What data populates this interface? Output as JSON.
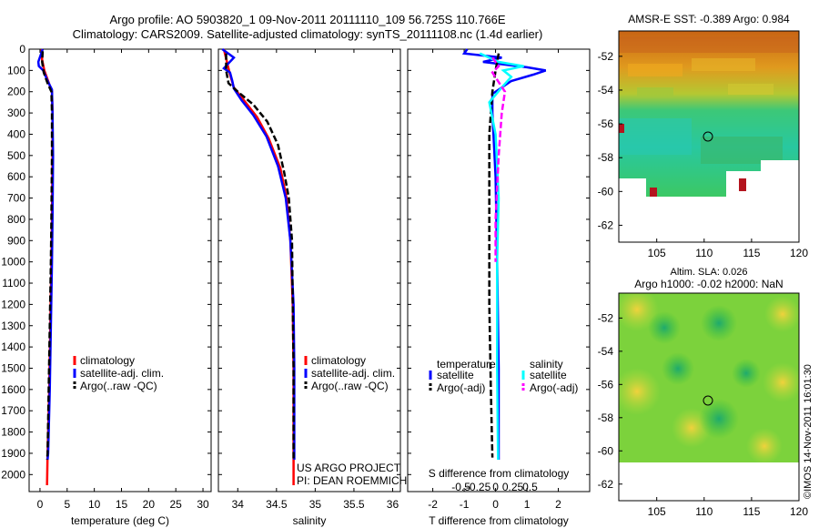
{
  "header": {
    "title_line1": "Argo profile: AO 5903820_1 09-Nov-2011 20111110_109 56.725S 110.766E",
    "title_line2": "Climatology: CARS2009. Satellite-adjusted climatology: synTS_20111108.nc (1.4d earlier)"
  },
  "colors": {
    "climatology": "#ff0000",
    "satellite": "#0000ff",
    "argo": "#000000",
    "sal_satellite": "#00ffff",
    "sal_argo": "#ff00ff"
  },
  "chart_data": [
    {
      "type": "line",
      "name": "temperature-panel",
      "xlabel": "temperature (deg C)",
      "ylabel": "",
      "xlim": [
        -2,
        31.5
      ],
      "ylim": [
        2080,
        0
      ],
      "xticks": [
        0,
        5,
        10,
        15,
        20,
        25,
        30
      ],
      "yticks": [
        0,
        100,
        200,
        300,
        400,
        500,
        600,
        700,
        800,
        900,
        1000,
        1100,
        1200,
        1300,
        1400,
        1500,
        1600,
        1700,
        1800,
        1900,
        2000
      ],
      "legend": [
        "climatology",
        "satellite-adj. clim.",
        "Argo(..raw -QC)"
      ],
      "series": [
        {
          "name": "climatology",
          "color": "#ff0000",
          "dash": false,
          "points": [
            [
              0.3,
              0
            ],
            [
              0.4,
              50
            ],
            [
              0.8,
              100
            ],
            [
              1.5,
              150
            ],
            [
              2.2,
              200
            ],
            [
              2.3,
              300
            ],
            [
              2.3,
              500
            ],
            [
              2.2,
              800
            ],
            [
              2.1,
              1000
            ],
            [
              1.9,
              1300
            ],
            [
              1.7,
              1600
            ],
            [
              1.4,
              1900
            ],
            [
              1.3,
              2050
            ]
          ]
        },
        {
          "name": "satellite-adj. clim.",
          "color": "#0000ff",
          "dash": false,
          "points": [
            [
              0.5,
              0
            ],
            [
              -0.3,
              60
            ],
            [
              -0.2,
              80
            ],
            [
              0.6,
              100
            ],
            [
              1.4,
              150
            ],
            [
              2.2,
              190
            ],
            [
              2.3,
              300
            ],
            [
              2.4,
              500
            ],
            [
              2.3,
              800
            ],
            [
              2.2,
              1000
            ],
            [
              2.0,
              1300
            ],
            [
              1.8,
              1600
            ],
            [
              1.5,
              1900
            ],
            [
              1.4,
              1930
            ]
          ]
        },
        {
          "name": "Argo(..raw -QC)",
          "color": "#000000",
          "dash": true,
          "points": [
            [
              0.5,
              10
            ],
            [
              0.4,
              60
            ],
            [
              0.7,
              110
            ],
            [
              1.4,
              160
            ],
            [
              2.1,
              200
            ],
            [
              2.2,
              300
            ],
            [
              2.2,
              500
            ],
            [
              2.1,
              800
            ],
            [
              2.0,
              1000
            ],
            [
              1.8,
              1300
            ],
            [
              1.6,
              1600
            ],
            [
              1.4,
              1900
            ],
            [
              1.3,
              1930
            ]
          ]
        }
      ]
    },
    {
      "type": "line",
      "name": "salinity-panel",
      "xlabel": "salinity",
      "ylabel": "",
      "xlim": [
        33.75,
        36.1
      ],
      "ylim": [
        2080,
        0
      ],
      "xticks": [
        34,
        34.5,
        35,
        35.5,
        36
      ],
      "legend": [
        "climatology",
        "satellite-adj. clim.",
        "Argo(..raw -QC)"
      ],
      "series": [
        {
          "name": "climatology",
          "color": "#ff0000",
          "dash": false,
          "points": [
            [
              33.82,
              0
            ],
            [
              33.86,
              60
            ],
            [
              33.9,
              120
            ],
            [
              33.95,
              180
            ],
            [
              34.1,
              250
            ],
            [
              34.25,
              320
            ],
            [
              34.4,
              420
            ],
            [
              34.55,
              560
            ],
            [
              34.63,
              700
            ],
            [
              34.68,
              900
            ],
            [
              34.71,
              1200
            ],
            [
              34.72,
              1500
            ],
            [
              34.72,
              1800
            ],
            [
              34.72,
              2050
            ]
          ]
        },
        {
          "name": "satellite-adj. clim.",
          "color": "#0000ff",
          "dash": false,
          "points": [
            [
              33.8,
              0
            ],
            [
              33.95,
              40
            ],
            [
              33.82,
              90
            ],
            [
              33.9,
              110
            ],
            [
              33.93,
              150
            ],
            [
              33.95,
              185
            ],
            [
              34.05,
              240
            ],
            [
              34.2,
              310
            ],
            [
              34.37,
              410
            ],
            [
              34.52,
              550
            ],
            [
              34.62,
              700
            ],
            [
              34.68,
              900
            ],
            [
              34.72,
              1200
            ],
            [
              34.73,
              1500
            ],
            [
              34.73,
              1800
            ],
            [
              34.73,
              1930
            ]
          ]
        },
        {
          "name": "Argo(..raw -QC)",
          "color": "#000000",
          "dash": true,
          "points": [
            [
              33.85,
              20
            ],
            [
              33.85,
              100
            ],
            [
              33.88,
              160
            ],
            [
              34.0,
              200
            ],
            [
              34.2,
              260
            ],
            [
              34.38,
              340
            ],
            [
              34.52,
              450
            ],
            [
              34.6,
              580
            ],
            [
              34.66,
              700
            ],
            [
              34.7,
              900
            ],
            [
              34.71,
              1200
            ],
            [
              34.72,
              1500
            ],
            [
              34.72,
              1800
            ],
            [
              34.72,
              1930
            ]
          ]
        }
      ],
      "annotation_line1": "US ARGO PROJECT",
      "annotation_line2": "PI: DEAN ROEMMICH"
    },
    {
      "type": "line",
      "name": "difference-panel",
      "xlabel": "T difference from climatology",
      "top_axis_label": "S difference from climatology",
      "xlim": [
        -2.8,
        3
      ],
      "ylim": [
        2080,
        0
      ],
      "xticks": [
        -2,
        -1,
        0,
        1,
        2
      ],
      "top_ticks": [
        {
          "value": -0.5,
          "label": "-0.5"
        },
        {
          "value": -0.25,
          "label": "-0.25"
        },
        {
          "value": 0,
          "label": "0"
        },
        {
          "value": 0.25,
          "label": "0.25"
        },
        {
          "value": 0.5,
          "label": "0.5"
        }
      ],
      "legend_left_title": "temperature",
      "legend_right_title": "salinity",
      "legend": [
        "satellite",
        "Argo(-adj)",
        "satellite",
        "Argo(-adj)"
      ],
      "series": [
        {
          "name": "temperature satellite",
          "color": "#0000ff",
          "dash": false,
          "points": [
            [
              -0.9,
              0
            ],
            [
              -1.0,
              20
            ],
            [
              0.2,
              40
            ],
            [
              -0.4,
              60
            ],
            [
              1.0,
              85
            ],
            [
              1.6,
              100
            ],
            [
              1.2,
              120
            ],
            [
              0.5,
              150
            ],
            [
              -0.1,
              210
            ],
            [
              -0.1,
              300
            ],
            [
              0.0,
              600
            ],
            [
              0.05,
              1000
            ],
            [
              0.1,
              1500
            ],
            [
              0.1,
              1930
            ]
          ]
        },
        {
          "name": "temperature Argo(-adj)",
          "color": "#000000",
          "dash": true,
          "points": [
            [
              0.1,
              20
            ],
            [
              0.0,
              100
            ],
            [
              -0.1,
              200
            ],
            [
              -0.2,
              400
            ],
            [
              -0.2,
              800
            ],
            [
              -0.2,
              1200
            ],
            [
              -0.15,
              1600
            ],
            [
              -0.1,
              1920
            ]
          ]
        },
        {
          "name": "salinity satellite",
          "color": "#00ffff",
          "dash": false,
          "points": [
            [
              -0.5,
              20
            ],
            [
              0.1,
              60
            ],
            [
              0.9,
              80
            ],
            [
              0.25,
              100
            ],
            [
              0.5,
              130
            ],
            [
              0.2,
              180
            ],
            [
              -0.2,
              250
            ],
            [
              0.0,
              400
            ],
            [
              0.1,
              700
            ],
            [
              0.05,
              1000
            ],
            [
              0.05,
              1500
            ],
            [
              0.08,
              1930
            ]
          ]
        },
        {
          "name": "salinity Argo(-adj)",
          "color": "#ff00ff",
          "dash": true,
          "points": [
            [
              -0.1,
              40
            ],
            [
              0.1,
              80
            ],
            [
              -0.1,
              110
            ],
            [
              0.3,
              200
            ],
            [
              0.2,
              300
            ],
            [
              0.1,
              500
            ],
            [
              0.0,
              800
            ],
            [
              0.0,
              1000
            ]
          ]
        }
      ]
    },
    {
      "type": "heatmap",
      "name": "sst-map",
      "title": "AMSR-E SST: -0.389 Argo: 0.984",
      "xticks": [
        105,
        110,
        115,
        120
      ],
      "yticks": [
        -52,
        -54,
        -56,
        -58,
        -60,
        -62
      ],
      "xlim": [
        101,
        120
      ],
      "ylim": [
        -63,
        -50.5
      ],
      "marker": {
        "lon": 110.766,
        "lat": -56.725
      }
    },
    {
      "type": "heatmap",
      "name": "sla-map",
      "title_line1": "Altim. SLA: 0.026",
      "title_line2": "Argo h1000: -0.02 h2000: NaN",
      "xticks": [
        105,
        110,
        115,
        120
      ],
      "yticks": [
        -52,
        -54,
        -56,
        -58,
        -60,
        -62
      ],
      "xlim": [
        101,
        120
      ],
      "ylim": [
        -63,
        -50.5
      ],
      "marker": {
        "lon": 110.766,
        "lat": -56.725
      }
    }
  ],
  "credit": "©IMOS 14-Nov-2011 16:01:30"
}
